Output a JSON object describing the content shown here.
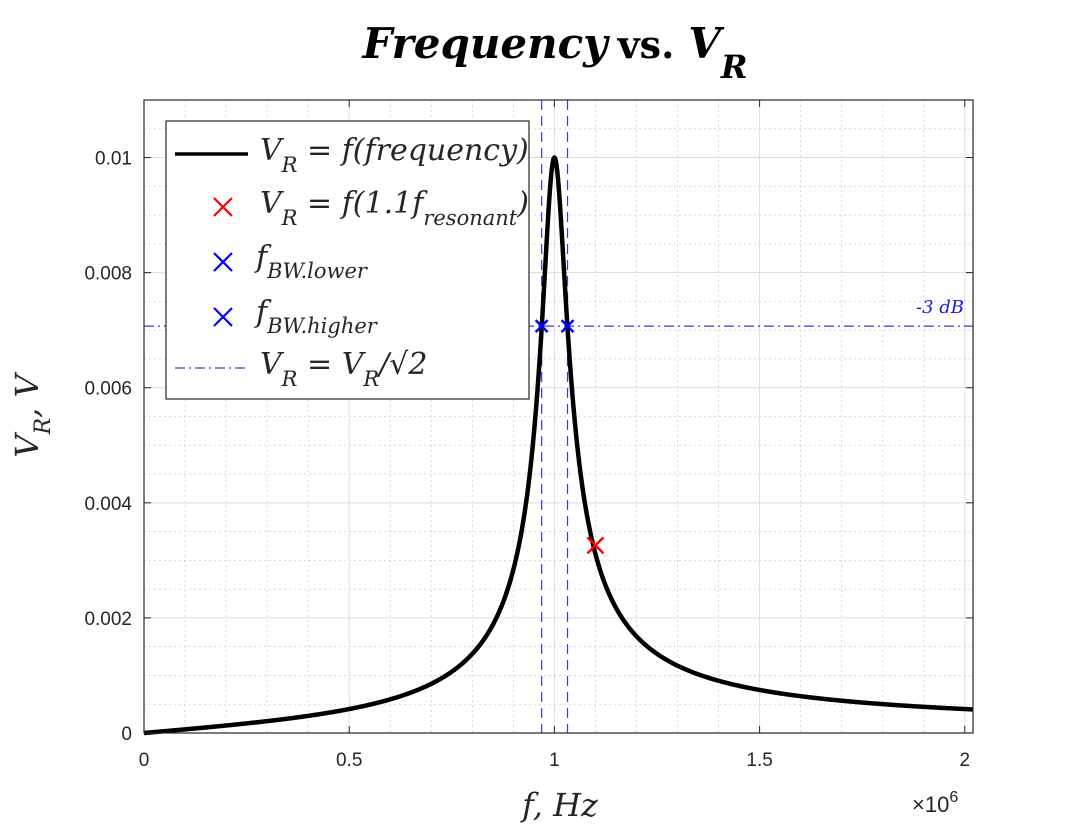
{
  "chart_data": {
    "type": "line",
    "title": {
      "part1": "Frequency",
      "part2": "vs.",
      "part3": "V",
      "sub": "R"
    },
    "xlabel": "f,  Hz",
    "ylabel_main": "V",
    "ylabel_sub": "R",
    "ylabel_rest": ",  V",
    "x_multiplier_base": "×10",
    "x_multiplier_exp": "6",
    "x_scale": 1000000,
    "xlim": [
      0,
      2.02
    ],
    "ylim": [
      0,
      0.011
    ],
    "xticks": [
      0,
      0.5,
      1,
      1.5,
      2
    ],
    "xtick_labels": [
      "0",
      "0.5",
      "1",
      "1.5",
      "2"
    ],
    "yticks": [
      0,
      0.002,
      0.004,
      0.006,
      0.008,
      0.01
    ],
    "ytick_labels": [
      "0",
      "0.002",
      "0.004",
      "0.006",
      "0.008",
      "0.01"
    ],
    "grid": true,
    "minor_grid": true,
    "series_curve": {
      "name": "V_R = f(frequency)",
      "peak_value": 0.01,
      "resonant_frequency": 1.0,
      "quality_factor": 16,
      "x_start": 0,
      "x_end": 2.02,
      "color": "#000000"
    },
    "point_resonant": {
      "x": 1.1,
      "y": 0.00326,
      "color": "#ff0000"
    },
    "point_bw_lower": {
      "x": 0.969,
      "y": 0.00707,
      "color": "#0000ff"
    },
    "point_bw_higher": {
      "x": 1.032,
      "y": 0.00707,
      "color": "#0000ff"
    },
    "reference_vlines": [
      0.969,
      1.032
    ],
    "reference_hline": 0.00707,
    "reference_color": "#3a3ad6",
    "annotation_3db": "-3 dB",
    "legend_position": "top-left",
    "legend": [
      {
        "main": "V",
        "sub": "R",
        "rest": " = f(frequency)"
      },
      {
        "main": "V",
        "sub": "R",
        "rest": " = f(1.1f",
        "sub2": "resonant",
        "tail": ")"
      },
      {
        "main": "f",
        "sub": "BW.lower"
      },
      {
        "main": "f",
        "sub": "BW.higher"
      },
      {
        "main": "V",
        "sub": "R",
        "rest": " = V",
        "sub2": "R",
        "tail": "/√2"
      }
    ]
  }
}
